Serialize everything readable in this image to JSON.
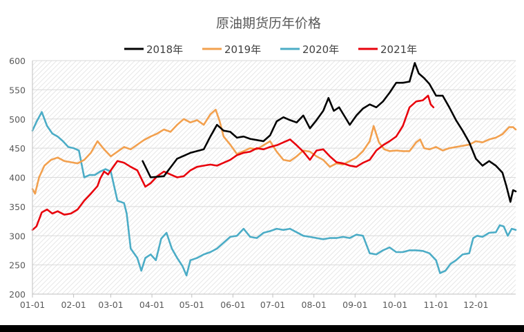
{
  "chart_data": {
    "type": "line",
    "title": "原油期货历年价格",
    "xlabel": "",
    "ylabel": "",
    "ylim": [
      200,
      600
    ],
    "y_ticks": [
      200,
      250,
      300,
      350,
      400,
      450,
      500,
      550,
      600
    ],
    "x_range": [
      1,
      365
    ],
    "x_ticks": [
      {
        "label": "01-01",
        "day": 1
      },
      {
        "label": "02-01",
        "day": 32
      },
      {
        "label": "03-01",
        "day": 60
      },
      {
        "label": "04-01",
        "day": 91
      },
      {
        "label": "05-01",
        "day": 121
      },
      {
        "label": "06-01",
        "day": 152
      },
      {
        "label": "07-01",
        "day": 182
      },
      {
        "label": "08-01",
        "day": 213
      },
      {
        "label": "09-01",
        "day": 244
      },
      {
        "label": "10-01",
        "day": 274
      },
      {
        "label": "11-01",
        "day": 305
      },
      {
        "label": "12-01",
        "day": 335
      }
    ],
    "grid": true,
    "legend_position": "top",
    "series": [
      {
        "name": "2018年",
        "color": "#000000",
        "points": [
          [
            84,
            428
          ],
          [
            90,
            400
          ],
          [
            100,
            402
          ],
          [
            110,
            432
          ],
          [
            120,
            442
          ],
          [
            130,
            448
          ],
          [
            135,
            470
          ],
          [
            140,
            490
          ],
          [
            145,
            480
          ],
          [
            150,
            478
          ],
          [
            155,
            468
          ],
          [
            160,
            470
          ],
          [
            165,
            466
          ],
          [
            170,
            464
          ],
          [
            175,
            462
          ],
          [
            180,
            472
          ],
          [
            185,
            496
          ],
          [
            190,
            503
          ],
          [
            195,
            498
          ],
          [
            200,
            494
          ],
          [
            205,
            506
          ],
          [
            210,
            484
          ],
          [
            215,
            498
          ],
          [
            220,
            514
          ],
          [
            224,
            536
          ],
          [
            228,
            514
          ],
          [
            232,
            520
          ],
          [
            236,
            505
          ],
          [
            240,
            490
          ],
          [
            245,
            506
          ],
          [
            250,
            518
          ],
          [
            255,
            525
          ],
          [
            260,
            520
          ],
          [
            265,
            530
          ],
          [
            270,
            545
          ],
          [
            275,
            562
          ],
          [
            280,
            562
          ],
          [
            285,
            564
          ],
          [
            289,
            596
          ],
          [
            292,
            578
          ],
          [
            296,
            570
          ],
          [
            300,
            560
          ],
          [
            305,
            540
          ],
          [
            310,
            540
          ],
          [
            315,
            520
          ],
          [
            320,
            498
          ],
          [
            325,
            480
          ],
          [
            330,
            460
          ],
          [
            335,
            432
          ],
          [
            340,
            420
          ],
          [
            345,
            428
          ],
          [
            350,
            420
          ],
          [
            355,
            408
          ],
          [
            358,
            385
          ],
          [
            361,
            358
          ],
          [
            363,
            378
          ],
          [
            365,
            376
          ]
        ]
      },
      {
        "name": "2019年",
        "color": "#F2A04E",
        "points": [
          [
            1,
            380
          ],
          [
            3,
            372
          ],
          [
            6,
            400
          ],
          [
            10,
            420
          ],
          [
            15,
            430
          ],
          [
            20,
            434
          ],
          [
            25,
            428
          ],
          [
            30,
            426
          ],
          [
            35,
            424
          ],
          [
            40,
            430
          ],
          [
            45,
            442
          ],
          [
            50,
            462
          ],
          [
            55,
            448
          ],
          [
            60,
            436
          ],
          [
            65,
            444
          ],
          [
            70,
            452
          ],
          [
            75,
            448
          ],
          [
            80,
            456
          ],
          [
            85,
            464
          ],
          [
            90,
            470
          ],
          [
            95,
            475
          ],
          [
            100,
            482
          ],
          [
            105,
            478
          ],
          [
            110,
            490
          ],
          [
            115,
            500
          ],
          [
            120,
            494
          ],
          [
            125,
            498
          ],
          [
            130,
            490
          ],
          [
            135,
            508
          ],
          [
            139,
            516
          ],
          [
            142,
            496
          ],
          [
            145,
            470
          ],
          [
            150,
            456
          ],
          [
            155,
            440
          ],
          [
            160,
            445
          ],
          [
            165,
            450
          ],
          [
            170,
            448
          ],
          [
            175,
            455
          ],
          [
            180,
            462
          ],
          [
            185,
            444
          ],
          [
            190,
            430
          ],
          [
            195,
            428
          ],
          [
            200,
            436
          ],
          [
            205,
            446
          ],
          [
            210,
            444
          ],
          [
            215,
            436
          ],
          [
            220,
            430
          ],
          [
            225,
            418
          ],
          [
            230,
            424
          ],
          [
            235,
            422
          ],
          [
            240,
            428
          ],
          [
            245,
            434
          ],
          [
            250,
            445
          ],
          [
            255,
            462
          ],
          [
            258,
            488
          ],
          [
            262,
            460
          ],
          [
            266,
            448
          ],
          [
            270,
            445
          ],
          [
            275,
            446
          ],
          [
            280,
            445
          ],
          [
            285,
            445
          ],
          [
            290,
            460
          ],
          [
            293,
            465
          ],
          [
            296,
            450
          ],
          [
            300,
            448
          ],
          [
            305,
            452
          ],
          [
            310,
            446
          ],
          [
            315,
            450
          ],
          [
            320,
            452
          ],
          [
            325,
            454
          ],
          [
            330,
            456
          ],
          [
            335,
            462
          ],
          [
            340,
            460
          ],
          [
            345,
            465
          ],
          [
            350,
            468
          ],
          [
            355,
            474
          ],
          [
            360,
            486
          ],
          [
            363,
            486
          ],
          [
            365,
            482
          ]
        ]
      },
      {
        "name": "2020年",
        "color": "#4BACC6",
        "points": [
          [
            1,
            480
          ],
          [
            4,
            495
          ],
          [
            8,
            512
          ],
          [
            12,
            488
          ],
          [
            16,
            475
          ],
          [
            20,
            470
          ],
          [
            24,
            462
          ],
          [
            28,
            452
          ],
          [
            32,
            450
          ],
          [
            36,
            446
          ],
          [
            40,
            400
          ],
          [
            44,
            404
          ],
          [
            48,
            404
          ],
          [
            52,
            410
          ],
          [
            56,
            414
          ],
          [
            60,
            410
          ],
          [
            65,
            360
          ],
          [
            70,
            356
          ],
          [
            72,
            338
          ],
          [
            75,
            278
          ],
          [
            80,
            262
          ],
          [
            83,
            240
          ],
          [
            86,
            262
          ],
          [
            90,
            268
          ],
          [
            94,
            258
          ],
          [
            98,
            295
          ],
          [
            102,
            305
          ],
          [
            106,
            278
          ],
          [
            110,
            262
          ],
          [
            114,
            248
          ],
          [
            117,
            232
          ],
          [
            120,
            258
          ],
          [
            125,
            262
          ],
          [
            130,
            268
          ],
          [
            135,
            272
          ],
          [
            140,
            278
          ],
          [
            145,
            288
          ],
          [
            150,
            298
          ],
          [
            155,
            300
          ],
          [
            160,
            312
          ],
          [
            165,
            298
          ],
          [
            170,
            296
          ],
          [
            175,
            305
          ],
          [
            180,
            308
          ],
          [
            185,
            312
          ],
          [
            190,
            310
          ],
          [
            195,
            312
          ],
          [
            200,
            306
          ],
          [
            205,
            300
          ],
          [
            210,
            298
          ],
          [
            215,
            296
          ],
          [
            220,
            294
          ],
          [
            225,
            296
          ],
          [
            230,
            296
          ],
          [
            235,
            298
          ],
          [
            240,
            296
          ],
          [
            245,
            302
          ],
          [
            250,
            300
          ],
          [
            255,
            270
          ],
          [
            260,
            268
          ],
          [
            265,
            275
          ],
          [
            270,
            280
          ],
          [
            275,
            272
          ],
          [
            280,
            272
          ],
          [
            285,
            275
          ],
          [
            290,
            275
          ],
          [
            295,
            274
          ],
          [
            300,
            270
          ],
          [
            305,
            258
          ],
          [
            308,
            236
          ],
          [
            312,
            240
          ],
          [
            316,
            252
          ],
          [
            320,
            258
          ],
          [
            325,
            268
          ],
          [
            330,
            270
          ],
          [
            333,
            296
          ],
          [
            336,
            300
          ],
          [
            340,
            298
          ],
          [
            345,
            305
          ],
          [
            350,
            306
          ],
          [
            353,
            318
          ],
          [
            356,
            316
          ],
          [
            359,
            300
          ],
          [
            362,
            312
          ],
          [
            365,
            310
          ]
        ]
      },
      {
        "name": "2021年",
        "color": "#E8000B",
        "points": [
          [
            1,
            310
          ],
          [
            4,
            316
          ],
          [
            8,
            340
          ],
          [
            12,
            345
          ],
          [
            16,
            338
          ],
          [
            20,
            342
          ],
          [
            25,
            336
          ],
          [
            30,
            338
          ],
          [
            35,
            345
          ],
          [
            40,
            360
          ],
          [
            45,
            372
          ],
          [
            50,
            385
          ],
          [
            52,
            398
          ],
          [
            55,
            410
          ],
          [
            58,
            405
          ],
          [
            60,
            412
          ],
          [
            65,
            428
          ],
          [
            70,
            425
          ],
          [
            75,
            418
          ],
          [
            80,
            412
          ],
          [
            83,
            398
          ],
          [
            86,
            384
          ],
          [
            90,
            390
          ],
          [
            95,
            402
          ],
          [
            100,
            410
          ],
          [
            105,
            405
          ],
          [
            110,
            400
          ],
          [
            115,
            402
          ],
          [
            120,
            412
          ],
          [
            125,
            418
          ],
          [
            130,
            420
          ],
          [
            135,
            422
          ],
          [
            140,
            420
          ],
          [
            145,
            425
          ],
          [
            150,
            430
          ],
          [
            155,
            438
          ],
          [
            160,
            442
          ],
          [
            165,
            444
          ],
          [
            170,
            450
          ],
          [
            175,
            448
          ],
          [
            180,
            452
          ],
          [
            185,
            455
          ],
          [
            190,
            460
          ],
          [
            195,
            465
          ],
          [
            200,
            455
          ],
          [
            205,
            444
          ],
          [
            210,
            430
          ],
          [
            215,
            446
          ],
          [
            220,
            448
          ],
          [
            225,
            436
          ],
          [
            230,
            426
          ],
          [
            235,
            424
          ],
          [
            240,
            420
          ],
          [
            245,
            418
          ],
          [
            250,
            425
          ],
          [
            255,
            430
          ],
          [
            260,
            446
          ],
          [
            265,
            455
          ],
          [
            270,
            462
          ],
          [
            275,
            470
          ],
          [
            280,
            488
          ],
          [
            285,
            520
          ],
          [
            290,
            530
          ],
          [
            295,
            532
          ],
          [
            299,
            540
          ],
          [
            301,
            525
          ],
          [
            303,
            520
          ]
        ]
      }
    ]
  }
}
